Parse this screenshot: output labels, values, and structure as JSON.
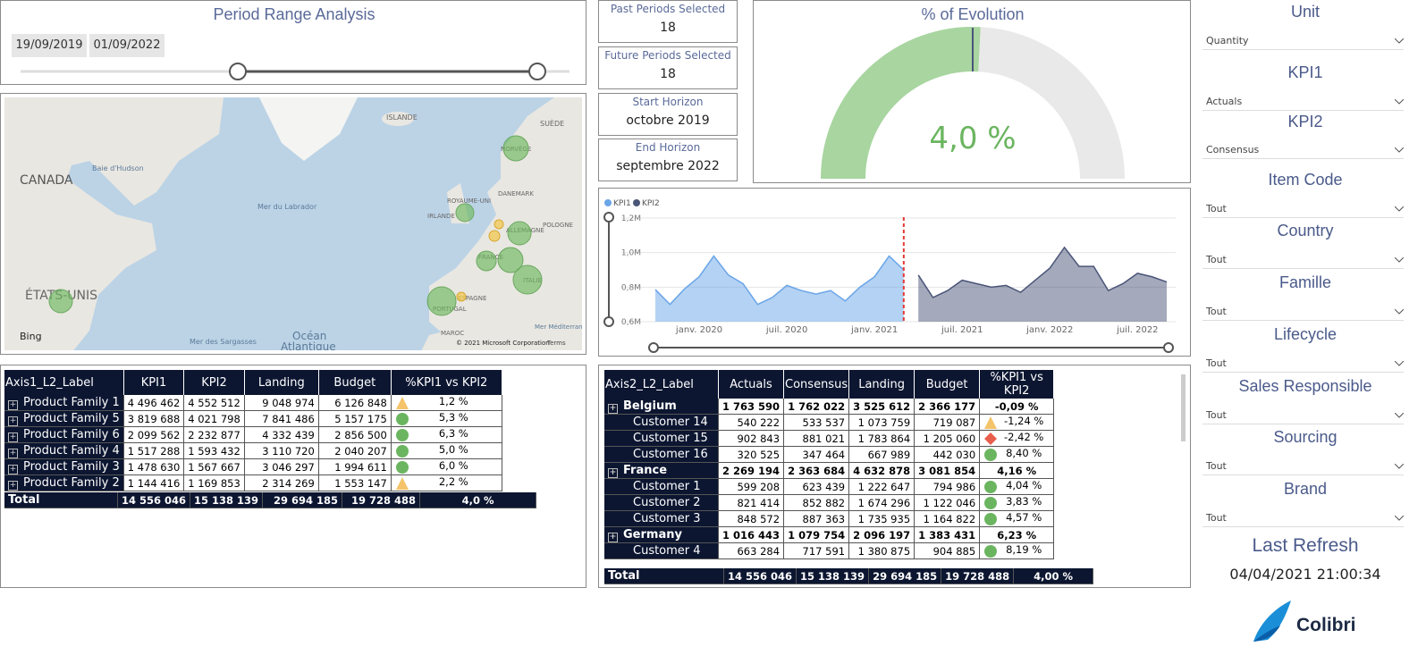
{
  "period_range": {
    "title": "Period Range Analysis",
    "start": "19/09/2019",
    "end": "01/09/2022"
  },
  "cards": [
    {
      "label": "Past Periods Selected",
      "value": 18
    },
    {
      "label": "Future Periods Selected",
      "value": 18
    },
    {
      "label": "Start Horizon",
      "value": "octobre 2019"
    },
    {
      "label": "End Horizon",
      "value": "septembre 2022"
    }
  ],
  "gauge": {
    "title": "% of Evolution",
    "value_label": "4,0 %"
  },
  "map": {
    "labels": [
      "CANADA",
      "ÉTATS-UNIS",
      "Baie d'Hudson",
      "Mer du Labrador",
      "ISLANDE",
      "SUÈDE",
      "NORVÈGE",
      "DANEMARK",
      "ROYAUME-UNI",
      "IRLANDE",
      "POLOGNE",
      "ALLEMAGNE",
      "FRANCE",
      "ITALIE",
      "ESPAGNE",
      "PORTUGAL",
      "MAROC",
      "Mer des Sargasses",
      "Océan",
      "Atlantique",
      "Mer Méditerranée",
      "Bing",
      "© 2021 Microsoft Corporation",
      "Terms"
    ]
  },
  "chart_data": {
    "type": "line",
    "categories": [
      null,
      null,
      null,
      "janv. 2020",
      null,
      null,
      null,
      null,
      null,
      "juil. 2020",
      null,
      null,
      null,
      null,
      null,
      "janv. 2021",
      null,
      null,
      null,
      null,
      null,
      "juil. 2021",
      null,
      null,
      null,
      null,
      null,
      "janv. 2022",
      null,
      null,
      null,
      null,
      null,
      "juil. 2022",
      null,
      null
    ],
    "series": [
      {
        "name": "KPI1",
        "color": "#6aa5e8",
        "values": [
          786000,
          700000,
          790000,
          860000,
          980000,
          870000,
          820000,
          700000,
          740000,
          810000,
          780000,
          760000,
          780000,
          720000,
          800000,
          860000,
          980000,
          900000,
          null,
          null,
          null,
          null,
          null,
          null,
          null,
          null,
          null,
          null,
          null,
          null,
          null,
          null,
          null,
          null,
          null,
          null
        ]
      },
      {
        "name": "KPI2",
        "color": "#4a5578",
        "values": [
          null,
          null,
          null,
          null,
          null,
          null,
          null,
          null,
          null,
          null,
          null,
          null,
          null,
          null,
          null,
          null,
          null,
          null,
          870000,
          740000,
          780000,
          840000,
          820000,
          800000,
          810000,
          770000,
          840000,
          910000,
          1030000,
          920000,
          920000,
          780000,
          820000,
          880000,
          860000,
          830000
        ]
      }
    ],
    "ylim": [
      600000,
      1200000
    ],
    "yticks": [
      {
        "value": 600000,
        "label": "0,6M"
      },
      {
        "value": 800000,
        "label": "0,8M"
      },
      {
        "value": 1000000,
        "label": "1,0M"
      },
      {
        "value": 1200000,
        "label": "1,2M"
      }
    ],
    "grid": true
  },
  "table1": {
    "columns": [
      "Axis1_L2_Label",
      "KPI1",
      "KPI2",
      "Landing",
      "Budget",
      "%KPI1 vs KPI2"
    ],
    "rows": [
      {
        "label": "Product Family 1",
        "values": [
          "4 496 462",
          "4 552 512",
          "9 048 974",
          "6 126 848"
        ],
        "pct": "1,2 %",
        "indicator": "triangle"
      },
      {
        "label": "Product Family 5",
        "values": [
          "3 819 688",
          "4 021 798",
          "7 841 486",
          "5 157 175"
        ],
        "pct": "5,3 %",
        "indicator": "circle"
      },
      {
        "label": "Product Family 6",
        "values": [
          "2 099 562",
          "2 232 877",
          "4 332 439",
          "2 856 500"
        ],
        "pct": "6,3 %",
        "indicator": "circle"
      },
      {
        "label": "Product Family 4",
        "values": [
          "1 517 288",
          "1 593 432",
          "3 110 720",
          "2 040 207"
        ],
        "pct": "5,0 %",
        "indicator": "circle"
      },
      {
        "label": "Product Family 3",
        "values": [
          "1 478 630",
          "1 567 667",
          "3 046 297",
          "1 994 611"
        ],
        "pct": "6,0 %",
        "indicator": "circle"
      },
      {
        "label": "Product Family 2",
        "values": [
          "1 144 416",
          "1 169 853",
          "2 314 269",
          "1 553 147"
        ],
        "pct": "2,2 %",
        "indicator": "triangle"
      }
    ],
    "total": {
      "label": "Total",
      "values": [
        "14 556 046",
        "15 138 139",
        "29 694 185",
        "19 728 488"
      ],
      "pct": "4,0 %"
    }
  },
  "table2": {
    "columns": [
      "Axis2_L2_Label",
      "Actuals",
      "Consensus",
      "Landing",
      "Budget",
      "%KPI1 vs KPI2"
    ],
    "rows": [
      {
        "label": "Belgium",
        "kind": "group",
        "values": [
          "1 763 590",
          "1 762 022",
          "3 525 612",
          "2 366 177"
        ],
        "pct": "-0,09 %"
      },
      {
        "label": "Customer 14",
        "values": [
          "540 222",
          "533 537",
          "1 073 759",
          "719 087"
        ],
        "pct": "-1,24 %",
        "indicator": "triangle"
      },
      {
        "label": "Customer 15",
        "values": [
          "902 843",
          "881 021",
          "1 783 864",
          "1 205 060"
        ],
        "pct": "-2,42 %",
        "indicator": "diamond"
      },
      {
        "label": "Customer 16",
        "values": [
          "320 525",
          "347 464",
          "667 989",
          "442 030"
        ],
        "pct": "8,40 %",
        "indicator": "circle"
      },
      {
        "label": "France",
        "kind": "group",
        "values": [
          "2 269 194",
          "2 363 684",
          "4 632 878",
          "3 081 854"
        ],
        "pct": "4,16 %"
      },
      {
        "label": "Customer 1",
        "values": [
          "599 208",
          "623 439",
          "1 222 647",
          "794 986"
        ],
        "pct": "4,04 %",
        "indicator": "circle"
      },
      {
        "label": "Customer 2",
        "values": [
          "821 414",
          "852 882",
          "1 674 296",
          "1 122 046"
        ],
        "pct": "3,83 %",
        "indicator": "circle"
      },
      {
        "label": "Customer 3",
        "values": [
          "848 572",
          "887 363",
          "1 735 935",
          "1 164 822"
        ],
        "pct": "4,57 %",
        "indicator": "circle"
      },
      {
        "label": "Germany",
        "kind": "group",
        "values": [
          "1 016 443",
          "1 079 754",
          "2 096 197",
          "1 383 431"
        ],
        "pct": "6,23 %"
      },
      {
        "label": "Customer 4",
        "values": [
          "663 284",
          "717 591",
          "1 380 875",
          "904 885"
        ],
        "pct": "8,19 %",
        "indicator": "circle"
      }
    ],
    "total": {
      "label": "Total",
      "values": [
        "14 556 046",
        "15 138 139",
        "29 694 185",
        "19 728 488"
      ],
      "pct": "4,00 %"
    }
  },
  "slicers": [
    {
      "title": "Unit",
      "value": "Quantity"
    },
    {
      "title": "KPI1",
      "value": "Actuals"
    },
    {
      "title": "KPI2",
      "value": "Consensus"
    },
    {
      "title": "Item Code",
      "value": "Tout"
    },
    {
      "title": "Country",
      "value": "Tout"
    },
    {
      "title": "Famille",
      "value": "Tout"
    },
    {
      "title": "Lifecycle",
      "value": "Tout"
    },
    {
      "title": "Sales Responsible",
      "value": "Tout"
    },
    {
      "title": "Sourcing",
      "value": "Tout"
    },
    {
      "title": "Brand",
      "value": "Tout"
    }
  ],
  "refresh": {
    "title": "Last Refresh",
    "value": "04/04/2021 21:00:34"
  },
  "logo": {
    "text": "Colibri"
  }
}
